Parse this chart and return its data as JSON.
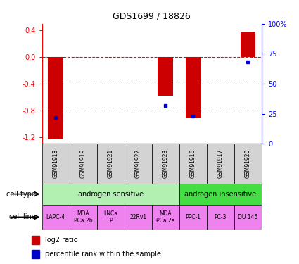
{
  "title": "GDS1699 / 18826",
  "samples": [
    "GSM91918",
    "GSM91919",
    "GSM91921",
    "GSM91922",
    "GSM91923",
    "GSM91916",
    "GSM91917",
    "GSM91920"
  ],
  "log2_ratio": [
    -1.23,
    0.0,
    0.0,
    0.0,
    -0.58,
    -0.92,
    0.0,
    0.38
  ],
  "percentile_rank": [
    22,
    null,
    null,
    null,
    32,
    23,
    null,
    68
  ],
  "cell_type_groups": [
    {
      "label": "androgen sensitive",
      "start": 0,
      "end": 5,
      "color": "#b2f0b2"
    },
    {
      "label": "androgen insensitive",
      "start": 5,
      "end": 8,
      "color": "#44dd44"
    }
  ],
  "cell_lines": [
    {
      "label": "LAPC-4",
      "start": 0,
      "end": 1
    },
    {
      "label": "MDA\nPCa 2b",
      "start": 1,
      "end": 2
    },
    {
      "label": "LNCa\nP",
      "start": 2,
      "end": 3
    },
    {
      "label": "22Rv1",
      "start": 3,
      "end": 4
    },
    {
      "label": "MDA\nPCa 2a",
      "start": 4,
      "end": 5
    },
    {
      "label": "PPC-1",
      "start": 5,
      "end": 6
    },
    {
      "label": "PC-3",
      "start": 6,
      "end": 7
    },
    {
      "label": "DU 145",
      "start": 7,
      "end": 8
    }
  ],
  "cell_line_color": "#ee82ee",
  "sample_bg_color": "#d3d3d3",
  "bar_color": "#cc0000",
  "dot_color": "#0000cc",
  "ylim": [
    -1.3,
    0.5
  ],
  "yticks_left": [
    -1.2,
    -0.8,
    -0.4,
    0.0,
    0.4
  ],
  "yticks_right": [
    0,
    25,
    50,
    75,
    100
  ],
  "hline_y": 0.0,
  "dotted_lines": [
    -0.4,
    -0.8
  ]
}
